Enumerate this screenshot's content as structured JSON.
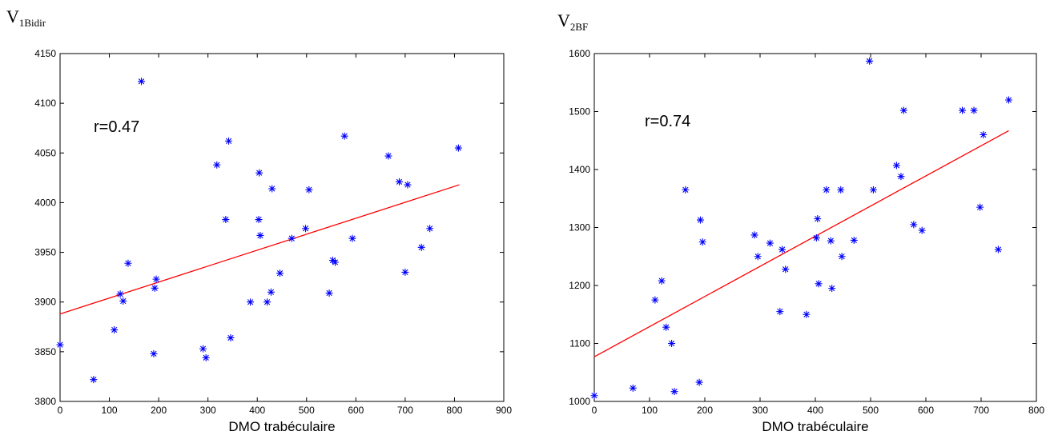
{
  "chart_data": [
    {
      "type": "scatter",
      "title_main": "V",
      "title_sub": "1Bidir",
      "annotation": "r=0.47",
      "xlabel": "DMO trabéculaire",
      "ylabel": "",
      "xlim": [
        0,
        900
      ],
      "ylim": [
        3800,
        4150
      ],
      "xticks": [
        0,
        100,
        200,
        300,
        400,
        500,
        600,
        700,
        800,
        900
      ],
      "yticks": [
        3800,
        3850,
        3900,
        3950,
        4000,
        4050,
        4100,
        4150
      ],
      "grid": false,
      "colors": {
        "marker": "#0000ff",
        "fit_line": "#ff0000",
        "axis": "#000000"
      },
      "fit_line": {
        "x": [
          0,
          810
        ],
        "y": [
          3888,
          4018
        ]
      },
      "points": [
        {
          "x": 0,
          "y": 3857
        },
        {
          "x": 68,
          "y": 3822
        },
        {
          "x": 110,
          "y": 3872
        },
        {
          "x": 122,
          "y": 3908
        },
        {
          "x": 128,
          "y": 3901
        },
        {
          "x": 138,
          "y": 3939
        },
        {
          "x": 165,
          "y": 4122
        },
        {
          "x": 190,
          "y": 3848
        },
        {
          "x": 192,
          "y": 3914
        },
        {
          "x": 195,
          "y": 3923
        },
        {
          "x": 290,
          "y": 3853
        },
        {
          "x": 296,
          "y": 3844
        },
        {
          "x": 318,
          "y": 4038
        },
        {
          "x": 336,
          "y": 3983
        },
        {
          "x": 342,
          "y": 4062
        },
        {
          "x": 346,
          "y": 3864
        },
        {
          "x": 386,
          "y": 3900
        },
        {
          "x": 403,
          "y": 3983
        },
        {
          "x": 404,
          "y": 4030
        },
        {
          "x": 406,
          "y": 3967
        },
        {
          "x": 420,
          "y": 3900
        },
        {
          "x": 428,
          "y": 3910
        },
        {
          "x": 430,
          "y": 4014
        },
        {
          "x": 446,
          "y": 3929
        },
        {
          "x": 470,
          "y": 3964
        },
        {
          "x": 498,
          "y": 3974
        },
        {
          "x": 505,
          "y": 4013
        },
        {
          "x": 546,
          "y": 3909
        },
        {
          "x": 553,
          "y": 3942
        },
        {
          "x": 558,
          "y": 3940
        },
        {
          "x": 577,
          "y": 4067
        },
        {
          "x": 593,
          "y": 3964
        },
        {
          "x": 666,
          "y": 4047
        },
        {
          "x": 688,
          "y": 4021
        },
        {
          "x": 700,
          "y": 3930
        },
        {
          "x": 705,
          "y": 4018
        },
        {
          "x": 733,
          "y": 3955
        },
        {
          "x": 750,
          "y": 3974
        },
        {
          "x": 808,
          "y": 4055
        }
      ]
    },
    {
      "type": "scatter",
      "title_main": "V",
      "title_sub": "2BF",
      "annotation": "r=0.74",
      "xlabel": "DMO trabéculaire",
      "ylabel": "",
      "xlim": [
        0,
        800
      ],
      "ylim": [
        1000,
        1600
      ],
      "xticks": [
        0,
        100,
        200,
        300,
        400,
        500,
        600,
        700,
        800
      ],
      "yticks": [
        1000,
        1100,
        1200,
        1300,
        1400,
        1500,
        1600
      ],
      "grid": false,
      "colors": {
        "marker": "#0000ff",
        "fit_line": "#ff0000",
        "axis": "#000000"
      },
      "fit_line": {
        "x": [
          0,
          750
        ],
        "y": [
          1077,
          1467
        ]
      },
      "points": [
        {
          "x": 0,
          "y": 1010
        },
        {
          "x": 70,
          "y": 1023
        },
        {
          "x": 110,
          "y": 1175
        },
        {
          "x": 122,
          "y": 1208
        },
        {
          "x": 130,
          "y": 1128
        },
        {
          "x": 140,
          "y": 1100
        },
        {
          "x": 145,
          "y": 1017
        },
        {
          "x": 165,
          "y": 1365
        },
        {
          "x": 190,
          "y": 1033
        },
        {
          "x": 192,
          "y": 1313
        },
        {
          "x": 196,
          "y": 1275
        },
        {
          "x": 290,
          "y": 1287
        },
        {
          "x": 296,
          "y": 1250
        },
        {
          "x": 318,
          "y": 1273
        },
        {
          "x": 336,
          "y": 1155
        },
        {
          "x": 340,
          "y": 1262
        },
        {
          "x": 346,
          "y": 1228
        },
        {
          "x": 384,
          "y": 1150
        },
        {
          "x": 402,
          "y": 1282
        },
        {
          "x": 404,
          "y": 1315
        },
        {
          "x": 406,
          "y": 1203
        },
        {
          "x": 420,
          "y": 1365
        },
        {
          "x": 428,
          "y": 1277
        },
        {
          "x": 430,
          "y": 1195
        },
        {
          "x": 446,
          "y": 1365
        },
        {
          "x": 448,
          "y": 1250
        },
        {
          "x": 470,
          "y": 1278
        },
        {
          "x": 498,
          "y": 1587
        },
        {
          "x": 505,
          "y": 1365
        },
        {
          "x": 547,
          "y": 1407
        },
        {
          "x": 555,
          "y": 1388
        },
        {
          "x": 560,
          "y": 1502
        },
        {
          "x": 578,
          "y": 1305
        },
        {
          "x": 593,
          "y": 1295
        },
        {
          "x": 666,
          "y": 1502
        },
        {
          "x": 687,
          "y": 1502
        },
        {
          "x": 698,
          "y": 1335
        },
        {
          "x": 704,
          "y": 1460
        },
        {
          "x": 731,
          "y": 1262
        },
        {
          "x": 750,
          "y": 1520
        }
      ]
    }
  ]
}
